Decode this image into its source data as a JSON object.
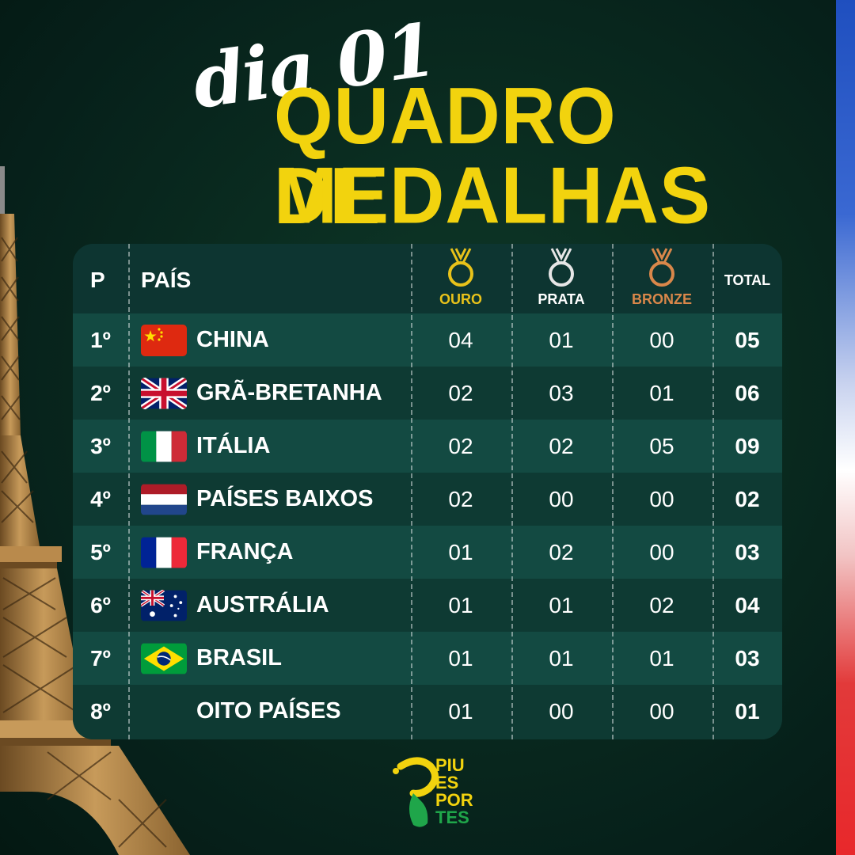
{
  "title": {
    "day": "dia 01",
    "line1": "QUADRO DE",
    "line2": "MEDALHAS"
  },
  "table": {
    "headers": {
      "position": "P",
      "country": "PAÍS",
      "gold": "OURO",
      "silver": "PRATA",
      "bronze": "BRONZE",
      "total": "TOTAL"
    },
    "rows": [
      {
        "pos": "1º",
        "country": "CHINA",
        "flag": "china-flag",
        "gold": "04",
        "silver": "01",
        "bronze": "00",
        "total": "05"
      },
      {
        "pos": "2º",
        "country": "GRÃ-BRETANHA",
        "flag": "uk-flag",
        "gold": "02",
        "silver": "03",
        "bronze": "01",
        "total": "06"
      },
      {
        "pos": "3º",
        "country": "ITÁLIA",
        "flag": "italy-flag",
        "gold": "02",
        "silver": "02",
        "bronze": "05",
        "total": "09"
      },
      {
        "pos": "4º",
        "country": "PAÍSES BAIXOS",
        "flag": "netherlands-flag",
        "gold": "02",
        "silver": "00",
        "bronze": "00",
        "total": "02"
      },
      {
        "pos": "5º",
        "country": "FRANÇA",
        "flag": "france-flag",
        "gold": "01",
        "silver": "02",
        "bronze": "00",
        "total": "03"
      },
      {
        "pos": "6º",
        "country": "AUSTRÁLIA",
        "flag": "australia-flag",
        "gold": "01",
        "silver": "01",
        "bronze": "02",
        "total": "04"
      },
      {
        "pos": "7º",
        "country": "BRASIL",
        "flag": "brazil-flag",
        "gold": "01",
        "silver": "01",
        "bronze": "01",
        "total": "03"
      },
      {
        "pos": "8º",
        "country": "OITO PAÍSES",
        "flag": "",
        "gold": "01",
        "silver": "00",
        "bronze": "00",
        "total": "01"
      }
    ]
  },
  "logo": {
    "line1": "PIU",
    "line2": "ES",
    "line3": "POR",
    "line4": "TES"
  },
  "colors": {
    "background": "#0a2c20",
    "title_yellow": "#f2d30e",
    "gold": "#e8c21a",
    "silver": "#e6e6e6",
    "bronze": "#d9874a"
  }
}
